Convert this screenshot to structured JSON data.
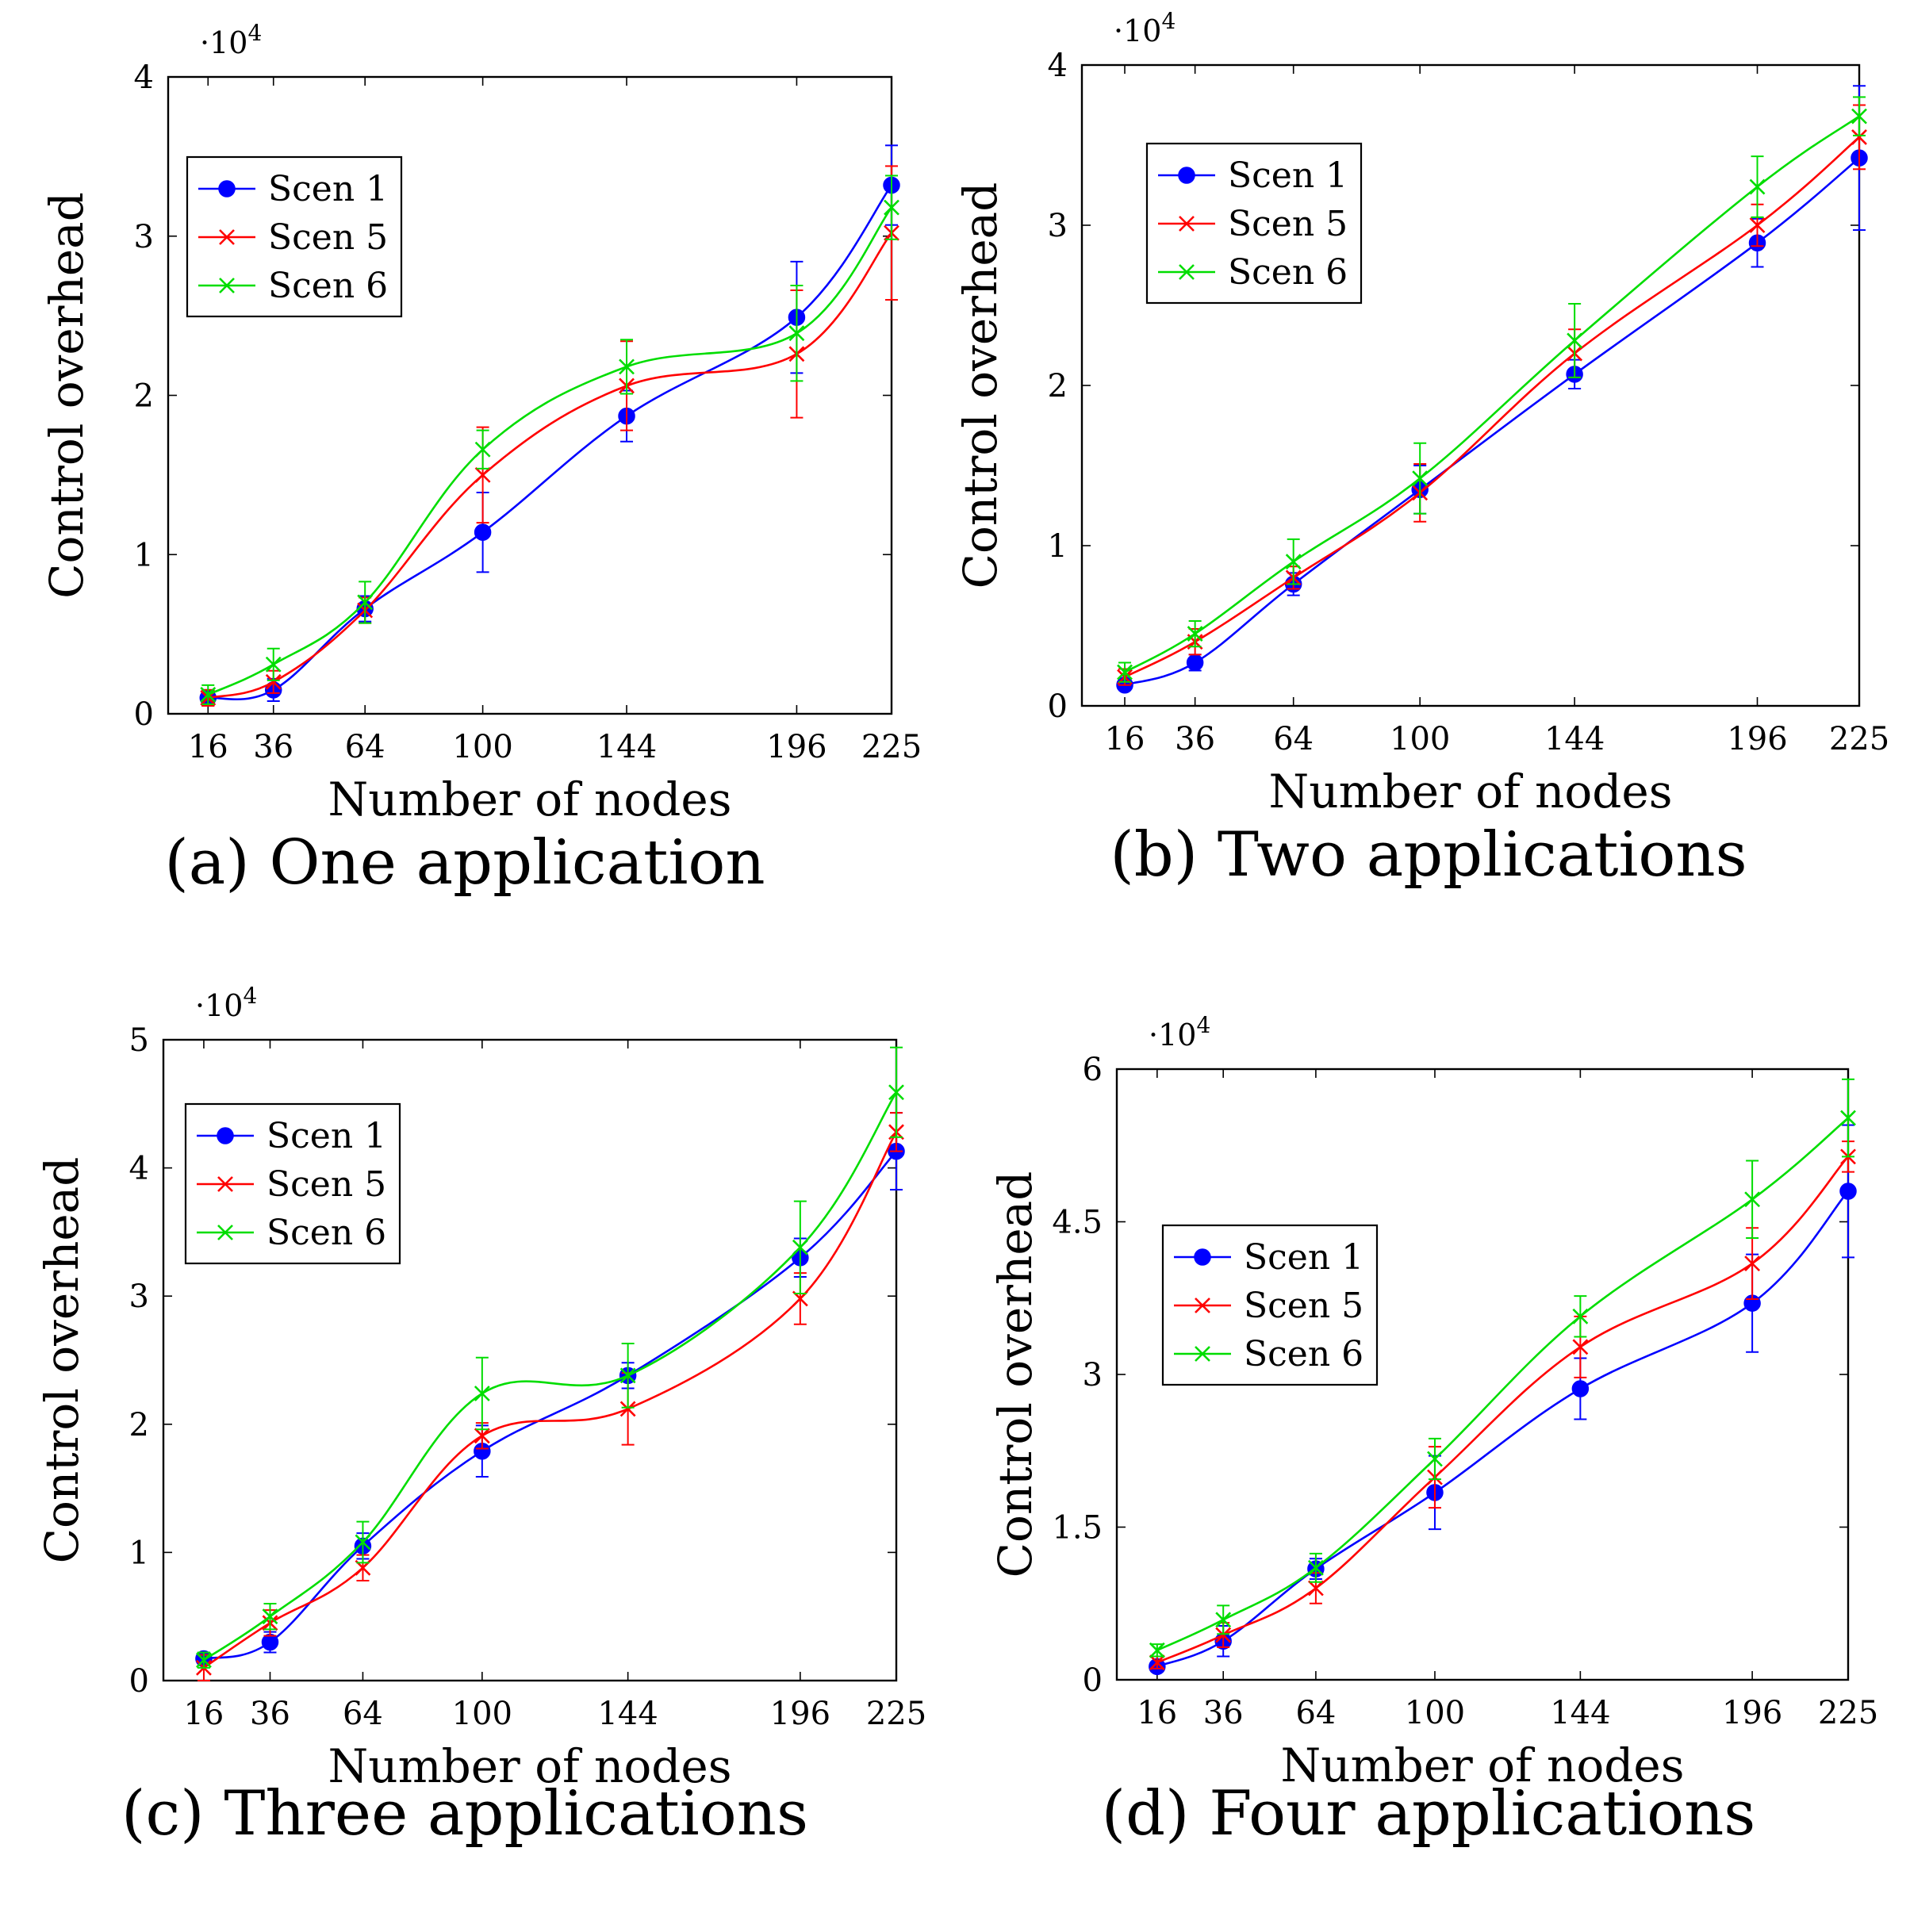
{
  "chart_data": [
    {
      "type": "line",
      "caption": "(a) One application",
      "xlabel": "Number of nodes",
      "ylabel": "Control overhead",
      "y_scale_label": "·10",
      "y_scale_exp": "4",
      "x": [
        16,
        36,
        64,
        100,
        144,
        196,
        225
      ],
      "x_tick_labels": [
        "16",
        "36",
        "64",
        "100",
        "144",
        "196",
        "225"
      ],
      "ylim": [
        0,
        4
      ],
      "y_ticks": [
        0,
        1,
        2,
        3,
        4
      ],
      "y_tick_labels": [
        "0",
        "1",
        "2",
        "3",
        "4"
      ],
      "legend": {
        "position": "top-left",
        "entries": [
          "Scen 1",
          "Scen 5",
          "Scen 6"
        ]
      },
      "series": [
        {
          "name": "Scen 1",
          "color": "#0000ff",
          "marker": "dot",
          "values": [
            0.1,
            0.15,
            0.66,
            1.14,
            1.87,
            2.49,
            3.32
          ],
          "errors": [
            0.05,
            0.07,
            0.08,
            0.25,
            0.16,
            0.35,
            0.25
          ]
        },
        {
          "name": "Scen 5",
          "color": "#ff0000",
          "marker": "cross",
          "values": [
            0.1,
            0.2,
            0.65,
            1.5,
            2.06,
            2.26,
            3.02
          ],
          "errors": [
            0.05,
            0.07,
            0.08,
            0.3,
            0.28,
            0.4,
            0.42
          ]
        },
        {
          "name": "Scen 6",
          "color": "#00dd00",
          "marker": "cross",
          "values": [
            0.12,
            0.31,
            0.7,
            1.66,
            2.18,
            2.39,
            3.18
          ],
          "errors": [
            0.06,
            0.1,
            0.13,
            0.12,
            0.17,
            0.3,
            0.2
          ]
        }
      ]
    },
    {
      "type": "line",
      "caption": "(b) Two applications",
      "xlabel": "Number of nodes",
      "ylabel": "Control overhead",
      "y_scale_label": "·10",
      "y_scale_exp": "4",
      "x": [
        16,
        36,
        64,
        100,
        144,
        196,
        225
      ],
      "x_tick_labels": [
        "16",
        "36",
        "64",
        "100",
        "144",
        "196",
        "225"
      ],
      "ylim": [
        0,
        4
      ],
      "y_ticks": [
        0,
        1,
        2,
        3,
        4
      ],
      "y_tick_labels": [
        "0",
        "1",
        "2",
        "3",
        "4"
      ],
      "legend": {
        "position": "top-left",
        "entries": [
          "Scen 1",
          "Scen 5",
          "Scen 6"
        ]
      },
      "series": [
        {
          "name": "Scen 1",
          "color": "#0000ff",
          "marker": "dot",
          "values": [
            0.13,
            0.27,
            0.76,
            1.35,
            2.07,
            2.89,
            3.42
          ],
          "errors": [
            0.03,
            0.05,
            0.07,
            0.15,
            0.09,
            0.15,
            0.45
          ]
        },
        {
          "name": "Scen 5",
          "color": "#ff0000",
          "marker": "cross",
          "values": [
            0.18,
            0.4,
            0.8,
            1.33,
            2.2,
            3.0,
            3.55
          ],
          "errors": [
            0.05,
            0.08,
            0.07,
            0.18,
            0.15,
            0.13,
            0.2
          ]
        },
        {
          "name": "Scen 6",
          "color": "#00dd00",
          "marker": "cross",
          "values": [
            0.21,
            0.45,
            0.9,
            1.42,
            2.28,
            3.24,
            3.68
          ],
          "errors": [
            0.06,
            0.08,
            0.14,
            0.22,
            0.23,
            0.19,
            0.12
          ]
        }
      ]
    },
    {
      "type": "line",
      "caption": "(c) Three applications",
      "xlabel": "Number of nodes",
      "ylabel": "Control overhead",
      "y_scale_label": "·10",
      "y_scale_exp": "4",
      "x": [
        16,
        36,
        64,
        100,
        144,
        196,
        225
      ],
      "x_tick_labels": [
        "16",
        "36",
        "64",
        "100",
        "144",
        "196",
        "225"
      ],
      "ylim": [
        0,
        5
      ],
      "y_ticks": [
        0,
        1,
        2,
        3,
        4,
        5
      ],
      "y_tick_labels": [
        "0",
        "1",
        "2",
        "3",
        "4",
        "5"
      ],
      "legend": {
        "position": "top-left",
        "entries": [
          "Scen 1",
          "Scen 5",
          "Scen 6"
        ]
      },
      "series": [
        {
          "name": "Scen 1",
          "color": "#0000ff",
          "marker": "dot",
          "values": [
            0.17,
            0.3,
            1.05,
            1.79,
            2.38,
            3.3,
            4.13
          ],
          "errors": [
            0.05,
            0.08,
            0.1,
            0.2,
            0.1,
            0.15,
            0.3
          ]
        },
        {
          "name": "Scen 5",
          "color": "#ff0000",
          "marker": "cross",
          "values": [
            0.1,
            0.45,
            0.88,
            1.91,
            2.12,
            2.98,
            4.28
          ],
          "errors": [
            0.1,
            0.1,
            0.1,
            0.1,
            0.28,
            0.2,
            0.15
          ]
        },
        {
          "name": "Scen 6",
          "color": "#00dd00",
          "marker": "cross",
          "values": [
            0.16,
            0.5,
            1.08,
            2.24,
            2.38,
            3.38,
            4.59
          ],
          "errors": [
            0.06,
            0.1,
            0.16,
            0.28,
            0.25,
            0.36,
            0.35
          ]
        }
      ]
    },
    {
      "type": "line",
      "caption": "(d) Four applications",
      "xlabel": "Number of nodes",
      "ylabel": "Control overhead",
      "y_scale_label": "·10",
      "y_scale_exp": "4",
      "x": [
        16,
        36,
        64,
        100,
        144,
        196,
        225
      ],
      "x_tick_labels": [
        "16",
        "36",
        "64",
        "100",
        "144",
        "196",
        "225"
      ],
      "ylim": [
        0,
        6
      ],
      "y_ticks": [
        0,
        1.5,
        3,
        4.5,
        6
      ],
      "y_tick_labels": [
        "0",
        "1.5",
        "3",
        "4.5",
        "6"
      ],
      "legend": {
        "position": "top-left",
        "entries": [
          "Scen 1",
          "Scen 5",
          "Scen 6"
        ]
      },
      "series": [
        {
          "name": "Scen 1",
          "color": "#0000ff",
          "marker": "dot",
          "values": [
            0.13,
            0.38,
            1.09,
            1.84,
            2.86,
            3.7,
            4.8
          ],
          "errors": [
            0.05,
            0.15,
            0.1,
            0.36,
            0.3,
            0.48,
            0.65
          ]
        },
        {
          "name": "Scen 5",
          "color": "#ff0000",
          "marker": "cross",
          "values": [
            0.17,
            0.44,
            0.9,
            1.99,
            3.27,
            4.09,
            5.14
          ],
          "errors": [
            0.06,
            0.12,
            0.15,
            0.3,
            0.3,
            0.35,
            0.15
          ]
        },
        {
          "name": "Scen 6",
          "color": "#00dd00",
          "marker": "cross",
          "values": [
            0.29,
            0.59,
            1.1,
            2.17,
            3.57,
            4.72,
            5.52
          ],
          "errors": [
            0.06,
            0.14,
            0.14,
            0.2,
            0.2,
            0.38,
            0.38
          ]
        }
      ]
    }
  ]
}
